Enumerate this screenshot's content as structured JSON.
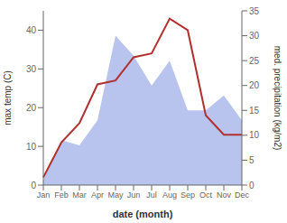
{
  "chart_data": {
    "type": "line",
    "categories": [
      "Jan",
      "Feb",
      "Mar",
      "Apr",
      "May",
      "Jun",
      "Jul",
      "Aug",
      "Sep",
      "Oct",
      "Nov",
      "Dec"
    ],
    "series": [
      {
        "type": "area",
        "axis": "y2",
        "color": "#b8c4ee",
        "values": [
          1,
          9,
          8,
          13,
          30,
          26,
          20,
          25,
          15,
          15,
          18,
          13
        ]
      },
      {
        "type": "line",
        "color": "#b03030",
        "values": [
          2,
          11,
          16,
          26,
          27,
          33,
          34,
          43,
          40,
          18,
          13,
          13
        ]
      }
    ],
    "xlabel": "date (month)",
    "ylabel": "max temp (C)",
    "y2label": "med. precipitation (kg/m2)",
    "ylim": [
      0,
      45
    ],
    "yticks": [
      0,
      10,
      20,
      30,
      40
    ],
    "y2lim": [
      0,
      35
    ],
    "y2ticks": [
      0,
      5,
      10,
      15,
      20,
      25,
      30,
      35
    ],
    "grid": false
  }
}
